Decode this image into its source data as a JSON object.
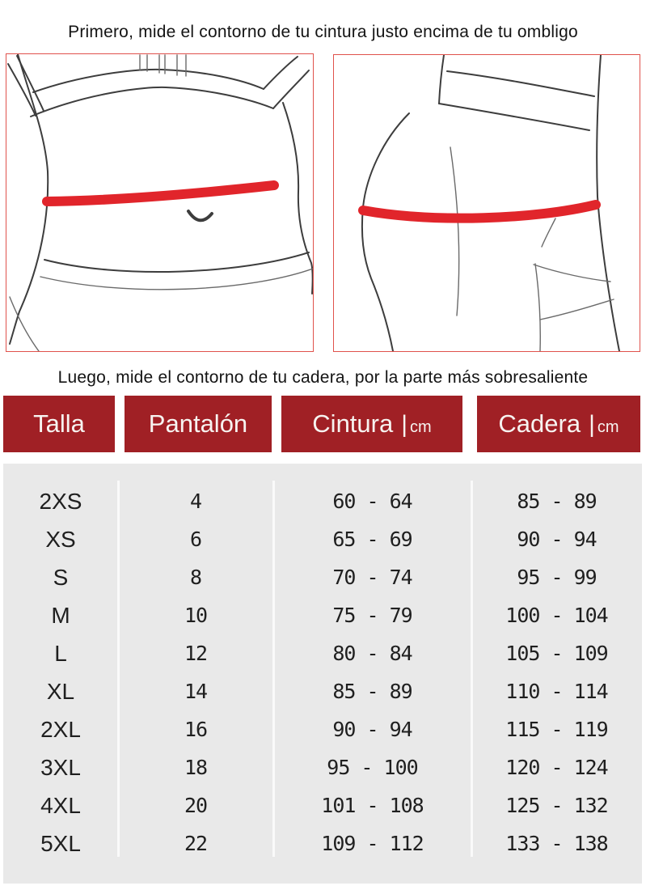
{
  "instructions": {
    "waist": "Primero, mide el contorno de tu cintura justo encima de tu ombligo",
    "hip": "Luego, mide el contorno de tu cadera, por la parte más sobresaliente"
  },
  "header": {
    "separator": "|",
    "columns": [
      {
        "label": "Talla",
        "unit": ""
      },
      {
        "label": "Pantalón",
        "unit": ""
      },
      {
        "label": "Cintura",
        "unit": "cm"
      },
      {
        "label": "Cadera",
        "unit": "cm"
      }
    ]
  },
  "chart_data": {
    "type": "table",
    "columns": [
      "Talla",
      "Pantalón",
      "Cintura (cm)",
      "Cadera (cm)"
    ],
    "rows": [
      [
        "2XS",
        "4",
        "60 - 64",
        "85 - 89"
      ],
      [
        "XS",
        "6",
        "65 - 69",
        "90 - 94"
      ],
      [
        "S",
        "8",
        "70 - 74",
        "95 - 99"
      ],
      [
        "M",
        "10",
        "75 - 79",
        "100 - 104"
      ],
      [
        "L",
        "12",
        "80 - 84",
        "105 - 109"
      ],
      [
        "XL",
        "14",
        "85 - 89",
        "110 - 114"
      ],
      [
        "2XL",
        "16",
        "90 - 94",
        "115 - 119"
      ],
      [
        "3XL",
        "18",
        "95 - 100",
        "120 - 124"
      ],
      [
        "4XL",
        "20",
        "101 - 108",
        "125 - 132"
      ],
      [
        "5XL",
        "22",
        "109 - 112",
        "133 - 138"
      ]
    ]
  },
  "colors": {
    "header_red": "#a02025",
    "measure_red": "#e1252b",
    "box_border": "#e0524c",
    "table_bg": "#e9e9e9"
  }
}
